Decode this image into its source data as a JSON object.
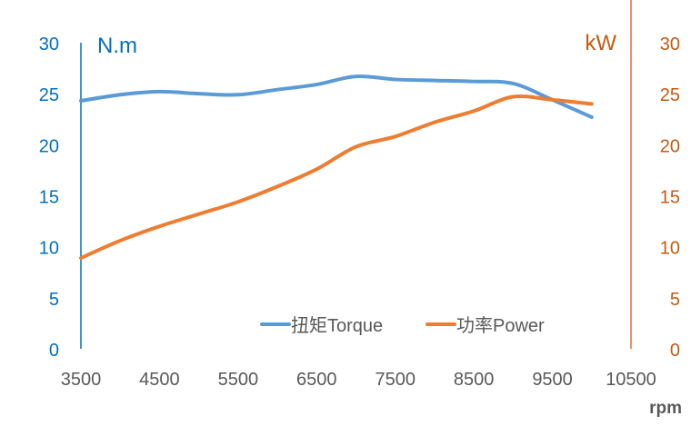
{
  "chart_data": {
    "type": "line",
    "title": "",
    "xlabel": "rpm",
    "ylabel_left": "N.m",
    "ylabel_right": "kW",
    "xlim": [
      3500,
      10500
    ],
    "ylim_left": [
      0,
      30
    ],
    "ylim_right": [
      0,
      30
    ],
    "x_ticks": [
      "3500",
      "4500",
      "5500",
      "6500",
      "7500",
      "8500",
      "9500",
      "10500"
    ],
    "y_ticks_left": [
      "0",
      "5",
      "10",
      "15",
      "20",
      "25",
      "30"
    ],
    "y_ticks_right": [
      "0",
      "5",
      "10",
      "15",
      "20",
      "25",
      "30"
    ],
    "grid": false,
    "legend_position": "bottom-right-inside",
    "x": [
      3500,
      4000,
      4500,
      5000,
      5500,
      6000,
      6500,
      7000,
      7500,
      8000,
      8500,
      9000,
      9500,
      10000
    ],
    "series": [
      {
        "name": "扭矩Torque",
        "axis": "left",
        "color": "#5b9bd5",
        "values": [
          24.3,
          24.9,
          25.2,
          25.0,
          24.9,
          25.4,
          25.9,
          26.7,
          26.4,
          26.3,
          26.2,
          26.0,
          24.4,
          22.7
        ]
      },
      {
        "name": "功率Power",
        "axis": "right",
        "color": "#ed7d31",
        "values": [
          8.9,
          10.6,
          12.0,
          13.2,
          14.4,
          15.9,
          17.6,
          19.8,
          20.8,
          22.2,
          23.3,
          24.7,
          24.4,
          24.0
        ]
      }
    ],
    "colors": {
      "left_axis": "#0070c0",
      "right_axis": "#c55a11",
      "axis_line_right": "#e46c3a",
      "x_tick_text": "#595959"
    }
  }
}
